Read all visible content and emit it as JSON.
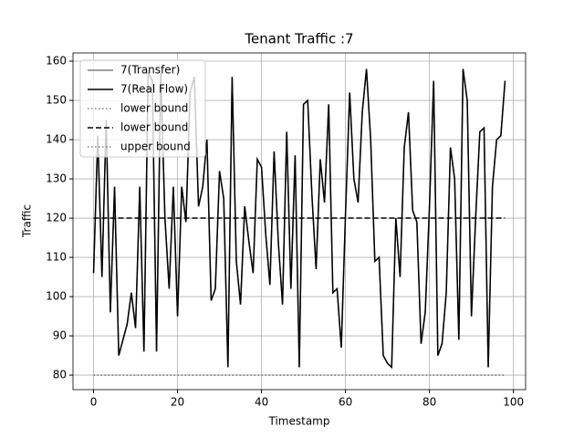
{
  "chart_data": {
    "type": "line",
    "title": "Tenant Traffic :7",
    "x_label": "Timestamp",
    "y_label": "Traffic",
    "xlim": [
      -4.9,
      102.9
    ],
    "ylim": [
      76.3,
      162.1
    ],
    "xticks": [
      0,
      20,
      40,
      60,
      80,
      100
    ],
    "yticks": [
      80,
      90,
      100,
      110,
      120,
      130,
      140,
      150,
      160
    ],
    "grid": true,
    "legend": "upper left",
    "series": [
      {
        "name": "7(Transfer)",
        "color": "#808080",
        "dash": "solid",
        "x": [
          0,
          1,
          2,
          3,
          4,
          5,
          6,
          7,
          8,
          9,
          10,
          11,
          12,
          13,
          14,
          15,
          16,
          17,
          18,
          19,
          20,
          21,
          22,
          23,
          24,
          25,
          26,
          27,
          28,
          29,
          30,
          31,
          32,
          33,
          34,
          35,
          36,
          37,
          38,
          39,
          40,
          41,
          42,
          43,
          44,
          45,
          46,
          47,
          48,
          49,
          50,
          51,
          52,
          53,
          54,
          55,
          56,
          57,
          58,
          59,
          60,
          61,
          62,
          63,
          64,
          65,
          66,
          67,
          68,
          69,
          70,
          71,
          72,
          73,
          74,
          75,
          76,
          77,
          78,
          79,
          80,
          81,
          82,
          83,
          84,
          85,
          86,
          87,
          88,
          89,
          90,
          91,
          92,
          93,
          94,
          95,
          96,
          97,
          98
        ],
        "values": [
          106,
          141,
          105,
          145,
          96,
          128,
          85,
          89,
          93,
          101,
          92,
          128,
          86,
          157,
          155,
          86,
          157,
          120,
          102,
          128,
          95,
          128,
          119,
          152,
          156,
          123,
          128,
          140,
          99,
          102,
          132,
          125,
          82,
          156,
          109,
          98,
          123,
          114,
          106,
          135,
          133,
          116,
          103,
          137,
          114,
          98,
          142,
          102,
          136,
          82,
          149,
          150,
          126,
          107,
          135,
          124,
          149,
          101,
          102,
          87,
          121,
          152,
          130,
          124,
          147,
          158,
          140,
          109,
          110,
          85,
          83,
          82,
          120,
          105,
          138,
          147,
          122,
          119,
          88,
          96,
          123,
          155,
          85,
          88,
          101,
          138,
          130,
          89,
          158,
          150,
          95,
          120,
          142,
          143,
          82,
          128,
          140,
          141,
          155
        ]
      },
      {
        "name": "7(Real Flow)",
        "color": "#000000",
        "dash": "solid",
        "x": [
          0,
          1,
          2,
          3,
          4,
          5,
          6,
          7,
          8,
          9,
          10,
          11,
          12,
          13,
          14,
          15,
          16,
          17,
          18,
          19,
          20,
          21,
          22,
          23,
          24,
          25,
          26,
          27,
          28,
          29,
          30,
          31,
          32,
          33,
          34,
          35,
          36,
          37,
          38,
          39,
          40,
          41,
          42,
          43,
          44,
          45,
          46,
          47,
          48,
          49,
          50,
          51,
          52,
          53,
          54,
          55,
          56,
          57,
          58,
          59,
          60,
          61,
          62,
          63,
          64,
          65,
          66,
          67,
          68,
          69,
          70,
          71,
          72,
          73,
          74,
          75,
          76,
          77,
          78,
          79,
          80,
          81,
          82,
          83,
          84,
          85,
          86,
          87,
          88,
          89,
          90,
          91,
          92,
          93,
          94,
          95,
          96,
          97,
          98
        ],
        "values": [
          106,
          141,
          105,
          145,
          96,
          128,
          85,
          89,
          93,
          101,
          92,
          128,
          86,
          157,
          155,
          86,
          157,
          120,
          102,
          128,
          95,
          128,
          119,
          152,
          156,
          123,
          128,
          140,
          99,
          102,
          132,
          125,
          82,
          156,
          109,
          98,
          123,
          114,
          106,
          135,
          133,
          116,
          103,
          137,
          114,
          98,
          142,
          102,
          136,
          82,
          149,
          150,
          126,
          107,
          135,
          124,
          149,
          101,
          102,
          87,
          121,
          152,
          130,
          124,
          147,
          158,
          140,
          109,
          110,
          85,
          83,
          82,
          120,
          105,
          138,
          147,
          122,
          119,
          88,
          96,
          123,
          155,
          85,
          88,
          101,
          138,
          130,
          89,
          158,
          150,
          95,
          120,
          142,
          143,
          82,
          128,
          140,
          141,
          155
        ]
      },
      {
        "name": "lower bound",
        "color": "#808080",
        "dash": "dotted",
        "x": [
          0,
          98
        ],
        "values": [
          80,
          80
        ]
      },
      {
        "name": "lower bound",
        "color": "#000000",
        "dash": "dashed",
        "x": [
          0,
          98
        ],
        "values": [
          120,
          120
        ]
      },
      {
        "name": "upper bound",
        "color": "#808080",
        "dash": "dotted",
        "x": [
          0,
          98
        ],
        "values": [
          80,
          80
        ]
      }
    ]
  }
}
